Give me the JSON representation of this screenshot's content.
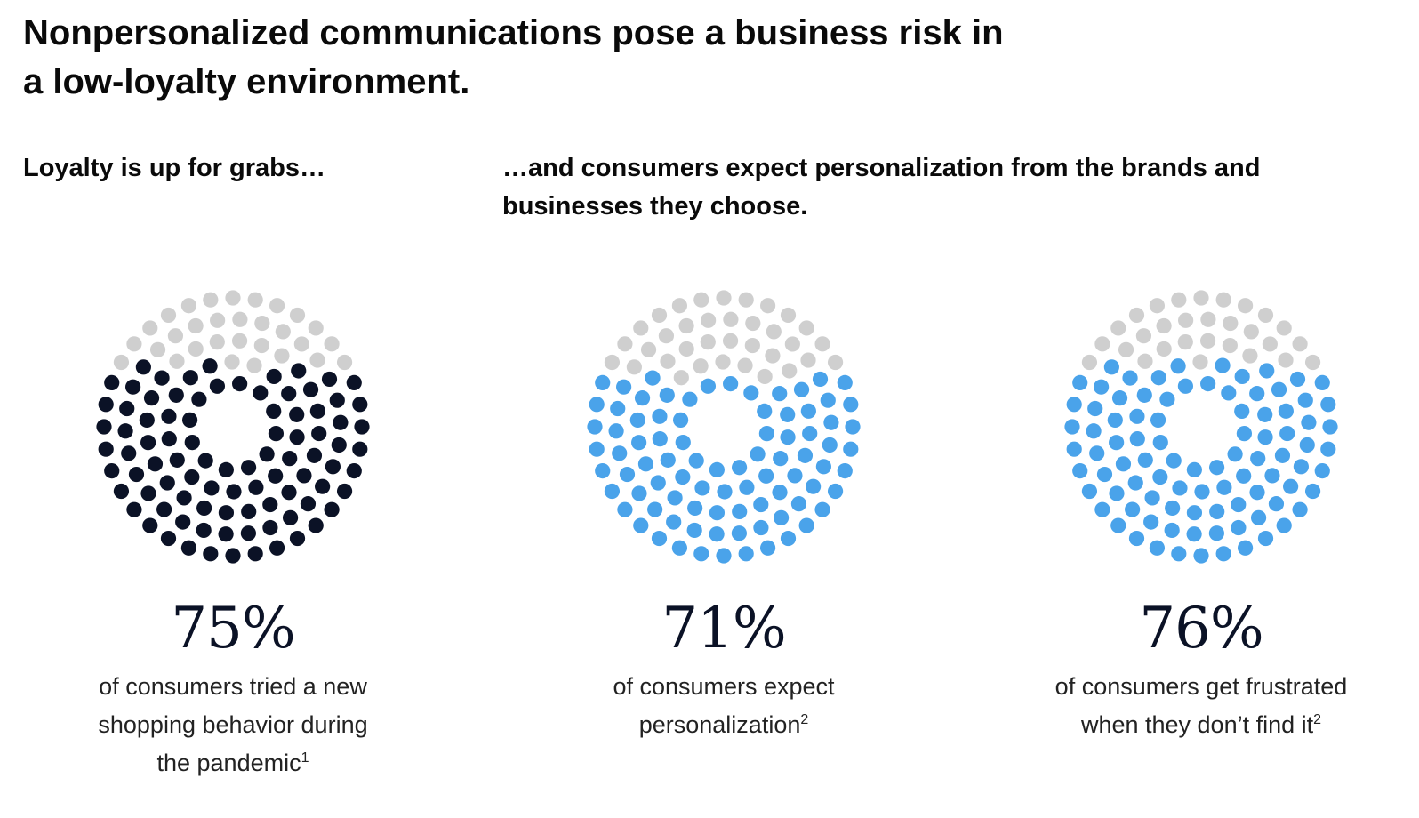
{
  "title_line1": "Nonpersonalized communications pose a business risk in",
  "title_line2": "a low-loyalty environment.",
  "subtitle_left": "Loyalty is up for grabs…",
  "subtitle_right_line1": "…and consumers expect personalization from the brands and",
  "subtitle_right_line2": "businesses they choose.",
  "colors": {
    "inactive": "#cfcfcf",
    "dark": "#0b1226",
    "blue": "#4aa3ea"
  },
  "chart_data": [
    {
      "type": "dot-ring",
      "value": 75,
      "label": "75%",
      "caption_lines": [
        "of consumers tried a new",
        "shopping behavior during",
        "the pandemic"
      ],
      "footnote": "1",
      "color": "#0b1226"
    },
    {
      "type": "dot-ring",
      "value": 71,
      "label": "71%",
      "caption_lines": [
        "of consumers expect",
        "personalization"
      ],
      "footnote": "2",
      "color": "#4aa3ea"
    },
    {
      "type": "dot-ring",
      "value": 76,
      "label": "76%",
      "caption_lines": [
        "of consumers get frustrated",
        "when they don’t find it"
      ],
      "footnote": "2",
      "color": "#4aa3ea"
    }
  ]
}
